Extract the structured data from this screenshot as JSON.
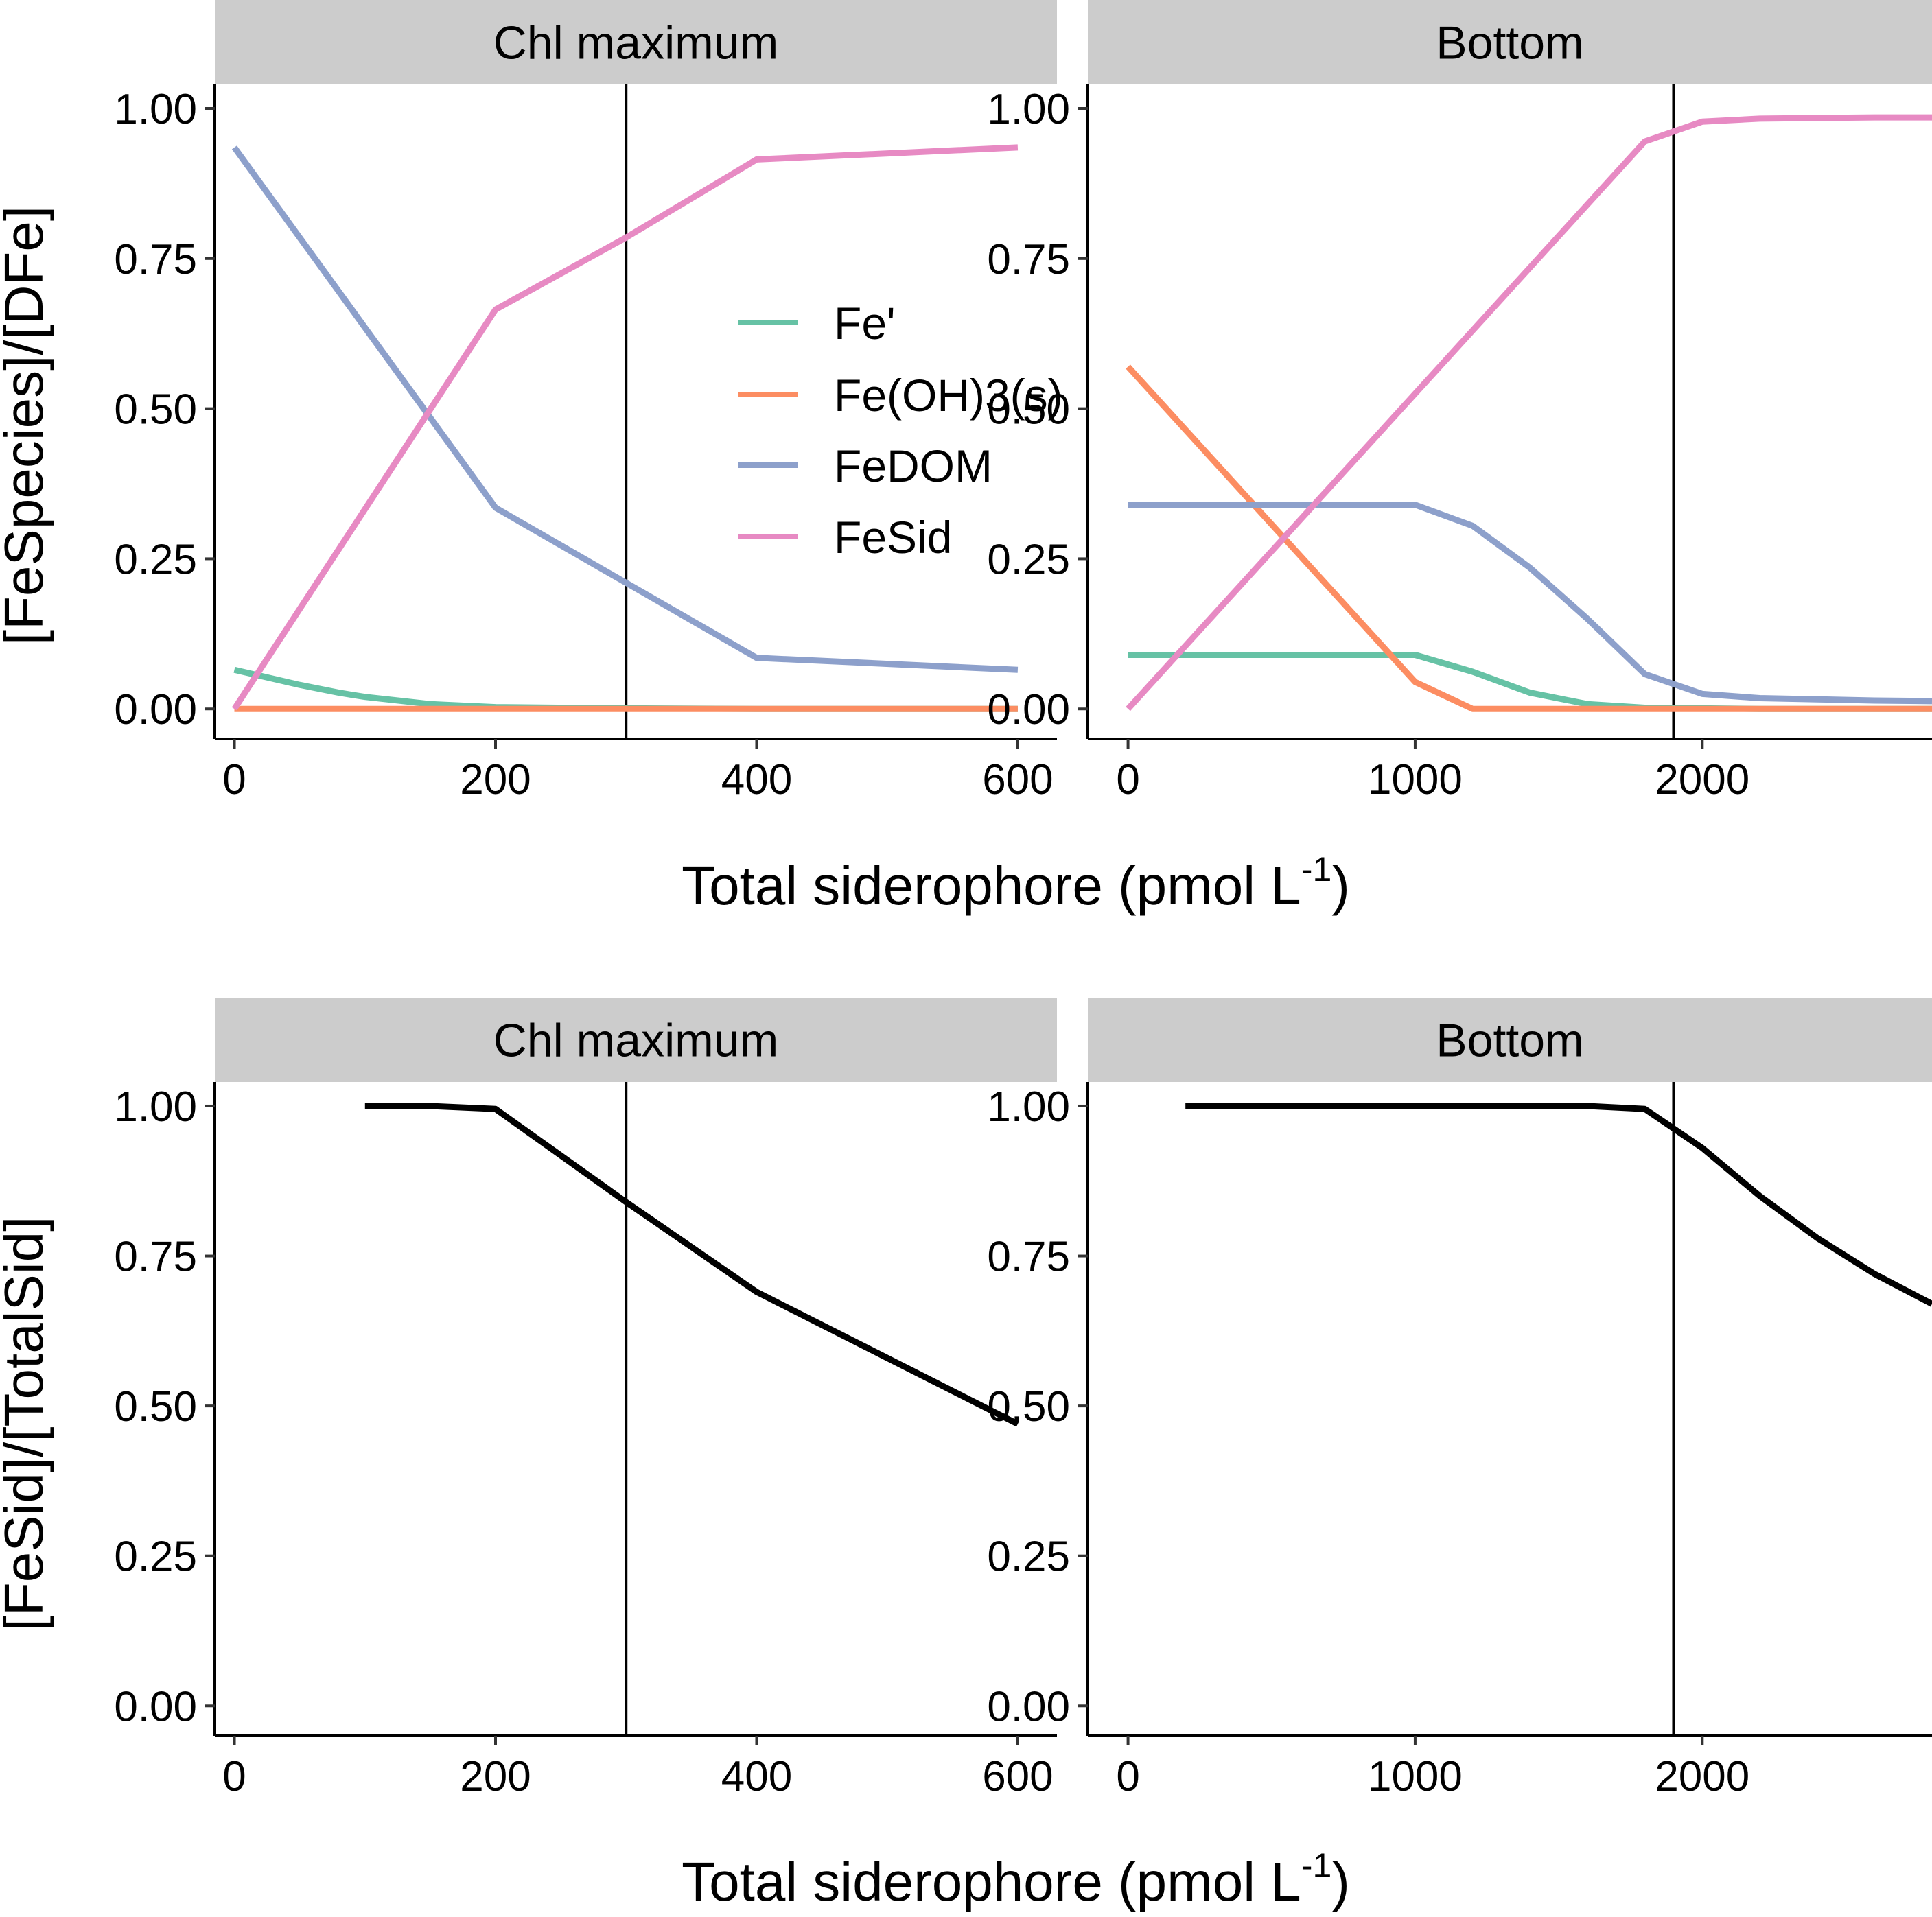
{
  "figure": {
    "top_row": {
      "ylabel": "[FeSpecies]/[DFe]",
      "xlabel": "Total siderophore (pmol L",
      "xlabel_sup": "-1",
      "xlabel_close": ")",
      "legend": {
        "entries": [
          {
            "name": "Fe'",
            "color": "#66C2A5"
          },
          {
            "name": "Fe(OH)3(s)",
            "color": "#FC8D62"
          },
          {
            "name": "FeDOM",
            "color": "#8DA0CB"
          },
          {
            "name": "FeSid",
            "color": "#E78AC3"
          }
        ]
      }
    },
    "bottom_row": {
      "ylabel": "[FeSid]/[TotalSid]",
      "xlabel": "Total siderophore (pmol L",
      "xlabel_sup": "-1",
      "xlabel_close": ")"
    }
  },
  "chart_data": [
    {
      "type": "line",
      "panel": "top-left",
      "strip": "Chl maximum",
      "xlim": [
        -15,
        630
      ],
      "ylim": [
        -0.05,
        1.04
      ],
      "xticks": [
        0,
        200,
        400,
        600
      ],
      "xtick_labels": [
        "0",
        "200",
        "400",
        "600"
      ],
      "yticks": [
        0,
        0.25,
        0.5,
        0.75,
        1.0
      ],
      "ytick_labels": [
        "0.00",
        "0.25",
        "0.50",
        "0.75",
        "1.00"
      ],
      "vline": 300,
      "series": [
        {
          "name": "Fe'",
          "color": "#66C2A5",
          "x": [
            0,
            50,
            80,
            100,
            150,
            200,
            300,
            400,
            600
          ],
          "y": [
            0.065,
            0.04,
            0.027,
            0.02,
            0.008,
            0.003,
            0.001,
            0.0,
            0.0
          ]
        },
        {
          "name": "Fe(OH)3(s)",
          "color": "#FC8D62",
          "x": [
            0,
            200,
            400,
            600
          ],
          "y": [
            0.0,
            0.0,
            0.0,
            0.0
          ]
        },
        {
          "name": "FeDOM",
          "color": "#8DA0CB",
          "x": [
            0,
            200,
            300,
            400,
            600
          ],
          "y": [
            0.935,
            0.335,
            0.21,
            0.085,
            0.065
          ]
        },
        {
          "name": "FeSid",
          "color": "#E78AC3",
          "x": [
            0,
            200,
            300,
            400,
            600
          ],
          "y": [
            0.0,
            0.665,
            0.785,
            0.915,
            0.935
          ]
        }
      ]
    },
    {
      "type": "line",
      "panel": "top-right",
      "strip": "Bottom",
      "xlim": [
        -140,
        2800
      ],
      "ylim": [
        -0.05,
        1.04
      ],
      "xticks": [
        0,
        1000,
        2000
      ],
      "xtick_labels": [
        "0",
        "1000",
        "2000"
      ],
      "yticks": [
        0,
        0.25,
        0.5,
        0.75,
        1.0
      ],
      "ytick_labels": [
        "0.00",
        "0.25",
        "0.50",
        "0.75",
        "1.00"
      ],
      "vline": 1900,
      "series": [
        {
          "name": "Fe'",
          "color": "#66C2A5",
          "x": [
            0,
            1000,
            1200,
            1400,
            1600,
            1800,
            2000,
            2200,
            2400,
            2600,
            2800
          ],
          "y": [
            0.09,
            0.09,
            0.062,
            0.027,
            0.008,
            0.002,
            0.001,
            0.0,
            0.0,
            0.0,
            0.0
          ]
        },
        {
          "name": "Fe(OH)3(s)",
          "color": "#FC8D62",
          "x": [
            0,
            1000,
            1200,
            1400,
            1600,
            1800,
            2000,
            2200,
            2400,
            2600,
            2800
          ],
          "y": [
            0.57,
            0.045,
            0.0,
            0.0,
            0.0,
            0.0,
            0.0,
            0.0,
            0.0,
            0.0,
            0.0
          ]
        },
        {
          "name": "FeDOM",
          "color": "#8DA0CB",
          "x": [
            0,
            1000,
            1200,
            1400,
            1600,
            1800,
            2000,
            2200,
            2400,
            2600,
            2800
          ],
          "y": [
            0.34,
            0.34,
            0.305,
            0.235,
            0.15,
            0.058,
            0.025,
            0.018,
            0.016,
            0.014,
            0.013
          ]
        },
        {
          "name": "FeSid",
          "color": "#E78AC3",
          "x": [
            0,
            1800,
            2000,
            2200,
            2400,
            2600,
            2800
          ],
          "y": [
            0.0,
            0.945,
            0.978,
            0.983,
            0.984,
            0.985,
            0.985
          ]
        }
      ]
    },
    {
      "type": "line",
      "panel": "bottom-left",
      "strip": "Chl maximum",
      "xlim": [
        -15,
        630
      ],
      "ylim": [
        -0.05,
        1.04
      ],
      "xticks": [
        0,
        200,
        400,
        600
      ],
      "xtick_labels": [
        "0",
        "200",
        "400",
        "600"
      ],
      "yticks": [
        0,
        0.25,
        0.5,
        0.75,
        1.0
      ],
      "ytick_labels": [
        "0.00",
        "0.25",
        "0.50",
        "0.75",
        "1.00"
      ],
      "vline": 300,
      "series": [
        {
          "name": "FeSid/TotalSid",
          "color": "#000000",
          "x": [
            100,
            150,
            200,
            300,
            400,
            500,
            600
          ],
          "y": [
            1.0,
            1.0,
            0.995,
            0.84,
            0.69,
            0.58,
            0.47
          ]
        }
      ]
    },
    {
      "type": "line",
      "panel": "bottom-right",
      "strip": "Bottom",
      "xlim": [
        -140,
        2800
      ],
      "ylim": [
        -0.05,
        1.04
      ],
      "xticks": [
        0,
        1000,
        2000
      ],
      "xtick_labels": [
        "0",
        "1000",
        "2000"
      ],
      "yticks": [
        0,
        0.25,
        0.5,
        0.75,
        1.0
      ],
      "ytick_labels": [
        "0.00",
        "0.25",
        "0.50",
        "0.75",
        "1.00"
      ],
      "vline": 1900,
      "series": [
        {
          "name": "FeSid/TotalSid",
          "color": "#000000",
          "x": [
            200,
            1000,
            1600,
            1800,
            2000,
            2200,
            2400,
            2600,
            2800
          ],
          "y": [
            1.0,
            1.0,
            1.0,
            0.995,
            0.93,
            0.85,
            0.78,
            0.72,
            0.67
          ]
        }
      ]
    }
  ]
}
